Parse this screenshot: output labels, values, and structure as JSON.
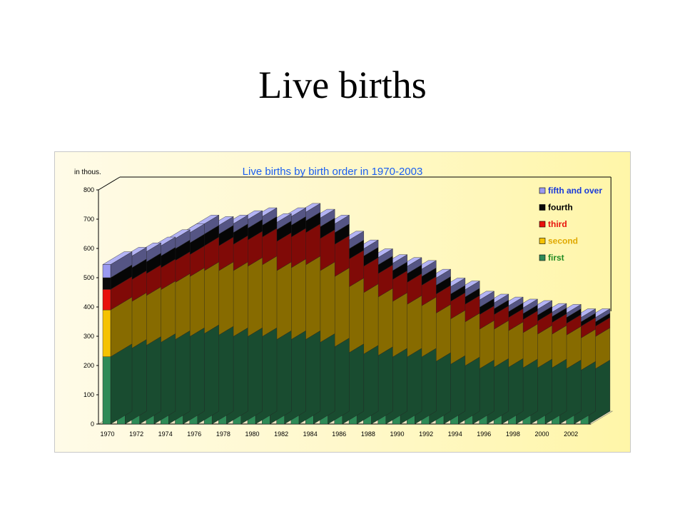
{
  "slide": {
    "title": "Live births"
  },
  "chart_data": {
    "type": "bar",
    "stacked": true,
    "three_d": true,
    "title": "Live births by birth order in 1970-2003",
    "unit_label": "in thous.",
    "ylim": [
      0,
      800
    ],
    "yticks": [
      0,
      100,
      200,
      300,
      400,
      500,
      600,
      700,
      800
    ],
    "categories": [
      "1970",
      "1971",
      "1972",
      "1973",
      "1974",
      "1975",
      "1976",
      "1977",
      "1978",
      "1979",
      "1980",
      "1981",
      "1982",
      "1983",
      "1984",
      "1985",
      "1986",
      "1987",
      "1988",
      "1989",
      "1990",
      "1991",
      "1992",
      "1993",
      "1994",
      "1995",
      "1996",
      "1997",
      "1998",
      "1999",
      "2000",
      "2001",
      "2002",
      "2003"
    ],
    "xtick_labels": [
      "1970",
      "",
      "1972",
      "",
      "1974",
      "",
      "1976",
      "",
      "1978",
      "",
      "1980",
      "",
      "1982",
      "",
      "1984",
      "",
      "1986",
      "",
      "1988",
      "",
      "1990",
      "",
      "1992",
      "",
      "1994",
      "",
      "1996",
      "",
      "1998",
      "",
      "2000",
      "",
      "2002",
      ""
    ],
    "series": [
      {
        "name": "first",
        "color": "#2e8b57",
        "label_color": "#228b22",
        "values": [
          230,
          245,
          255,
          265,
          275,
          285,
          295,
          290,
          285,
          285,
          285,
          275,
          275,
          275,
          265,
          250,
          230,
          225,
          220,
          215,
          215,
          215,
          200,
          190,
          185,
          175,
          180,
          180,
          178,
          178,
          178,
          175,
          170,
          175
        ]
      },
      {
        "name": "second",
        "color": "#f5c200",
        "label_color": "#e0a800",
        "values": [
          160,
          160,
          170,
          180,
          195,
          205,
          215,
          220,
          225,
          240,
          245,
          235,
          245,
          255,
          245,
          240,
          225,
          210,
          200,
          190,
          180,
          175,
          165,
          155,
          150,
          135,
          130,
          125,
          120,
          115,
          115,
          115,
          110,
          110
        ]
      },
      {
        "name": "third",
        "color": "#e8120c",
        "label_color": "#e8120c",
        "values": [
          70,
          75,
          75,
          75,
          75,
          75,
          85,
          85,
          90,
          90,
          95,
          100,
          105,
          110,
          110,
          110,
          95,
          90,
          80,
          75,
          75,
          70,
          65,
          60,
          60,
          50,
          50,
          45,
          45,
          45,
          40,
          40,
          40,
          35
        ]
      },
      {
        "name": "fourth",
        "color": "#0a0a0a",
        "label_color": "#000000",
        "values": [
          40,
          40,
          40,
          40,
          40,
          40,
          40,
          40,
          40,
          40,
          40,
          40,
          40,
          40,
          40,
          40,
          35,
          35,
          30,
          30,
          30,
          30,
          30,
          25,
          25,
          25,
          20,
          20,
          20,
          20,
          20,
          20,
          15,
          15
        ]
      },
      {
        "name": "fifth and over",
        "color": "#9a9af0",
        "label_color": "#1a3ad8",
        "values": [
          45,
          40,
          35,
          35,
          35,
          35,
          35,
          30,
          30,
          30,
          30,
          25,
          30,
          30,
          30,
          30,
          30,
          25,
          25,
          25,
          25,
          25,
          25,
          25,
          25,
          25,
          20,
          20,
          20,
          20,
          15,
          15,
          15,
          15
        ]
      }
    ],
    "legend_position": "right",
    "grid": false
  }
}
